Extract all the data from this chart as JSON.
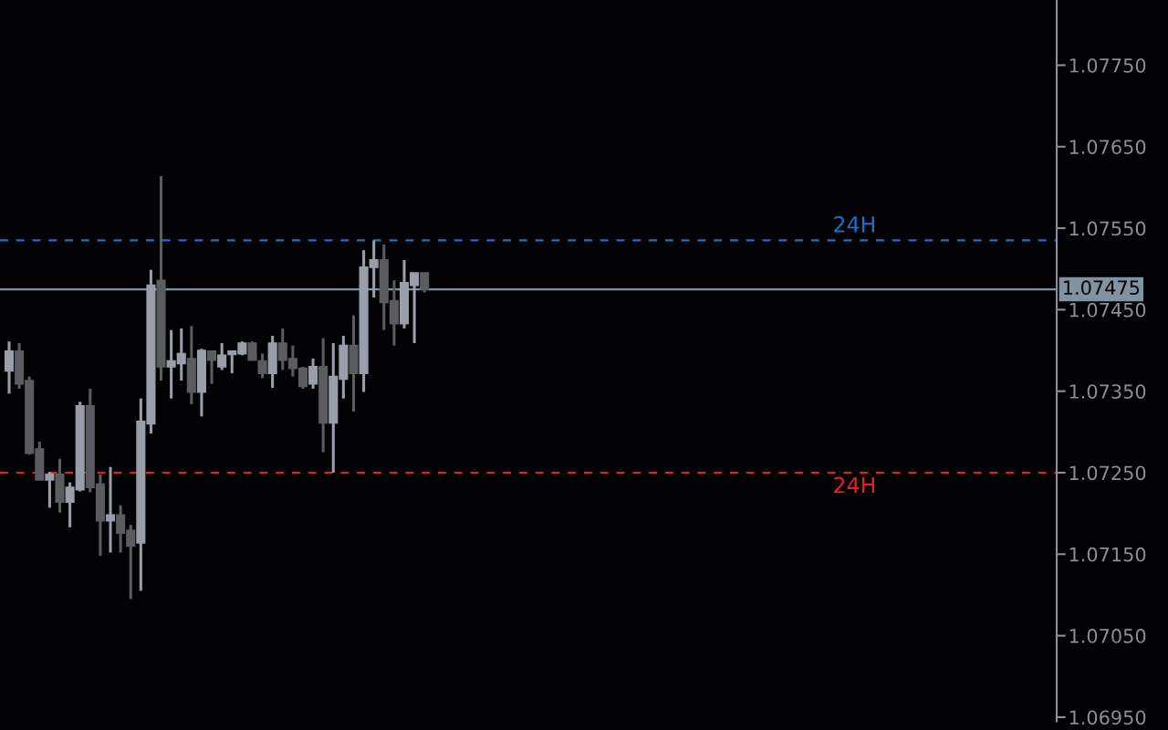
{
  "chart_data": {
    "type": "candlestick",
    "categories": [
      null,
      null,
      null,
      null,
      null,
      null,
      null,
      null,
      null,
      null,
      null,
      null,
      null,
      null,
      null,
      null,
      null,
      null,
      null,
      null,
      null,
      null,
      null,
      null,
      null,
      null,
      null,
      null,
      null,
      null,
      null,
      null,
      null,
      null,
      null,
      null,
      null,
      null,
      null,
      null,
      null,
      null,
      null,
      null,
      null,
      null,
      null,
      null,
      null,
      null,
      null,
      null,
      null,
      null,
      null,
      null,
      null,
      null,
      null,
      null,
      null,
      null,
      null,
      null,
      null,
      null,
      null,
      null,
      null,
      null,
      null,
      null,
      null,
      null,
      null,
      null,
      null,
      null,
      null,
      null,
      null,
      null,
      null,
      null,
      null,
      null,
      null,
      null,
      null,
      null,
      null,
      null,
      null,
      null,
      null,
      null,
      null,
      null,
      null,
      null,
      null,
      null,
      null,
      null
    ],
    "ohlc": [
      [
        1.07375,
        1.07411,
        1.07347,
        1.07399
      ],
      [
        1.07399,
        1.07409,
        1.07353,
        1.07359
      ],
      [
        1.07363,
        1.07368,
        1.07272,
        1.07274
      ],
      [
        1.07279,
        1.07288,
        1.07241,
        1.07241
      ],
      [
        1.07241,
        1.07251,
        1.07207,
        1.07248
      ],
      [
        1.07248,
        1.07267,
        1.07201,
        1.07214
      ],
      [
        1.07214,
        1.07238,
        1.07183,
        1.07232
      ],
      [
        1.07229,
        1.07337,
        1.07227,
        1.07332
      ],
      [
        1.07332,
        1.07353,
        1.07226,
        1.07232
      ],
      [
        1.07236,
        1.07248,
        1.07148,
        1.07191
      ],
      [
        1.07191,
        1.07257,
        1.07152,
        1.07198
      ],
      [
        1.07198,
        1.0721,
        1.07152,
        1.07176
      ],
      [
        1.07179,
        1.07186,
        1.07095,
        1.0716
      ],
      [
        1.07164,
        1.07341,
        1.07105,
        1.07313
      ],
      [
        1.0731,
        1.07499,
        1.07298,
        1.0748
      ],
      [
        1.07486,
        1.07614,
        1.07363,
        1.0738
      ],
      [
        1.0738,
        1.07425,
        1.07341,
        1.07387
      ],
      [
        1.07384,
        1.07427,
        1.07363,
        1.07396
      ],
      [
        1.0739,
        1.0743,
        1.07334,
        1.07349
      ],
      [
        1.07349,
        1.07402,
        1.07319,
        1.074
      ],
      [
        1.07399,
        1.07399,
        1.07359,
        1.07388
      ],
      [
        1.0738,
        1.07409,
        1.07376,
        1.07394
      ],
      [
        1.07395,
        1.07399,
        1.07372,
        1.07399
      ],
      [
        1.07396,
        1.07411,
        1.07394,
        1.07409
      ],
      [
        1.07409,
        1.07411,
        1.07388,
        1.07388
      ],
      [
        1.07387,
        1.07396,
        1.07366,
        1.07372
      ],
      [
        1.07372,
        1.07418,
        1.07354,
        1.07409
      ],
      [
        1.07409,
        1.07427,
        1.07376,
        1.07388
      ],
      [
        1.0739,
        1.07406,
        1.07368,
        1.07378
      ],
      [
        1.07378,
        1.0738,
        1.07353,
        1.07356
      ],
      [
        1.07359,
        1.0739,
        1.07353,
        1.0738
      ],
      [
        1.0738,
        1.07415,
        1.07275,
        1.07311
      ],
      [
        1.07311,
        1.07409,
        1.0725,
        1.07368
      ],
      [
        1.07365,
        1.07418,
        1.07341,
        1.07406
      ],
      [
        1.07406,
        1.07443,
        1.07325,
        1.07372
      ],
      [
        1.07372,
        1.07523,
        1.07349,
        1.07502
      ],
      [
        1.07502,
        1.07535,
        1.07465,
        1.07511
      ],
      [
        1.07511,
        1.0753,
        1.07425,
        1.07459
      ],
      [
        1.07461,
        1.07486,
        1.07406,
        1.07433
      ],
      [
        1.07433,
        1.07511,
        1.07427,
        1.07483
      ],
      [
        1.0748,
        1.07495,
        1.07409,
        1.07495
      ],
      [
        1.07495,
        1.07495,
        1.07471,
        1.07475
      ],
      null,
      null,
      null,
      null,
      null,
      null,
      null,
      null,
      null,
      null,
      null,
      null,
      null,
      null,
      null,
      null,
      null,
      null,
      null,
      null,
      null,
      null,
      null,
      null,
      null,
      null,
      null,
      null,
      null,
      null,
      null,
      null,
      null,
      null,
      null,
      null,
      null,
      null,
      null,
      null,
      null,
      null,
      null,
      null,
      null,
      null,
      null,
      null,
      null,
      null,
      null,
      null,
      null,
      null,
      null,
      null,
      null,
      null,
      null,
      null,
      null,
      null
    ],
    "colors": [
      "#9a9eab",
      "#5b5c61",
      "#5b5c61",
      "#5b5c61",
      "#9a9eab",
      "#5b5c61",
      "#9a9eab",
      "#9a9eab",
      "#5b5c61",
      "#5b5c61",
      "#9a9eab",
      "#5b5c61",
      "#5b5c61",
      "#9a9eab",
      "#9a9eab",
      "#5b5c61",
      "#9a9eab",
      "#9a9eab",
      "#5b5c61",
      "#9a9eab",
      "#5b5c61",
      "#9a9eab",
      "#9a9eab",
      "#9a9eab",
      "#5b5c61",
      "#5b5c61",
      "#9a9eab",
      "#5b5c61",
      "#5b5c61",
      "#5b5c61",
      "#9a9eab",
      "#5b5c61",
      "#9a9eab",
      "#9a9eab",
      "#5b5c61",
      "#9a9eab",
      "#9a9eab",
      "#5b5c61",
      "#5b5c61",
      "#9a9eab",
      "#9a9eab",
      "#5b5c61",
      null,
      null,
      null,
      null,
      null,
      null,
      null,
      null,
      null,
      null,
      null,
      null,
      null,
      null,
      null,
      null,
      null,
      null,
      null,
      null,
      null,
      null,
      null,
      null,
      null,
      null,
      null,
      null,
      null,
      null,
      null,
      null,
      null,
      null,
      null,
      null,
      null,
      null,
      null,
      null,
      null,
      null,
      null,
      null,
      null,
      null,
      null,
      null,
      null,
      null,
      null,
      null,
      null,
      null,
      null,
      null,
      null,
      null,
      null,
      null,
      null,
      null
    ],
    "ylim": [
      1.06945,
      1.0783
    ],
    "yticks": [
      {
        "value": 1.0695,
        "label": "1.06950"
      },
      {
        "value": 1.0705,
        "label": "1.07050"
      },
      {
        "value": 1.0715,
        "label": "1.07150"
      },
      {
        "value": 1.0725,
        "label": "1.07250"
      },
      {
        "value": 1.0735,
        "label": "1.07350"
      },
      {
        "value": 1.0745,
        "label": "1.07450"
      },
      {
        "value": 1.0755,
        "label": "1.07550"
      },
      {
        "value": 1.0765,
        "label": "1.07650"
      },
      {
        "value": 1.0775,
        "label": "1.07750"
      }
    ],
    "ref_lines": [
      {
        "axis": "y",
        "value": 1.07535,
        "label": "24H",
        "color": "#1e6fc8",
        "line_style": "dashed"
      },
      {
        "axis": "y",
        "value": 1.0725,
        "label": "24H",
        "color": "#e0202a",
        "line_style": "dashed"
      },
      {
        "axis": "y",
        "value": 1.07475,
        "label": "1.07475",
        "color": "#7f93a3",
        "line_style": "solid"
      }
    ],
    "grid": false,
    "legend": false
  }
}
